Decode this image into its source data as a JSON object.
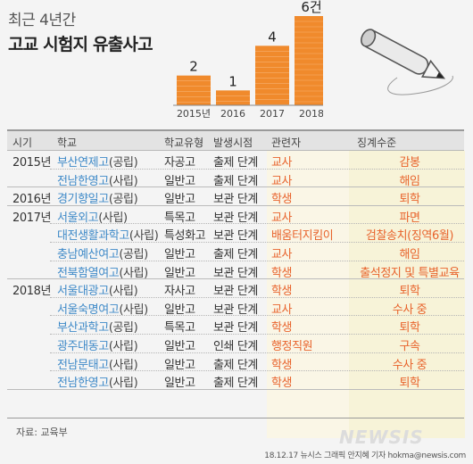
{
  "header": {
    "subtitle": "최근 4년간",
    "title": "고교 시험지 유출사고"
  },
  "chart_data": {
    "type": "bar",
    "categories": [
      "2015년",
      "2016",
      "2017",
      "2018"
    ],
    "values": [
      2,
      1,
      4,
      6
    ],
    "value_labels": [
      "2",
      "1",
      "4",
      "6건"
    ],
    "title": "",
    "xlabel": "",
    "ylabel": "",
    "ylim": [
      0,
      6
    ],
    "bar_color": "#f08a2c"
  },
  "table": {
    "headers": {
      "year": "시기",
      "school": "학교",
      "stype": "학교유형",
      "stage": "발생시점",
      "who": "관련자",
      "punish": "징계수준"
    },
    "rows": [
      {
        "year": "2015년",
        "name": "부산연제고",
        "type": "(공립)",
        "stype": "자공고",
        "stage": "출제 단계",
        "who": "교사",
        "punish": "감봉"
      },
      {
        "year": "",
        "name": "전남한영고",
        "type": "(사립)",
        "stype": "일반고",
        "stage": "출제 단계",
        "who": "교사",
        "punish": "해임"
      },
      {
        "year": "2016년",
        "name": "경기향일고",
        "type": "(공립)",
        "stype": "일반고",
        "stage": "보관 단계",
        "who": "학생",
        "punish": "퇴학"
      },
      {
        "year": "2017년",
        "name": "서울외고",
        "type": "(사립)",
        "stype": "특목고",
        "stage": "보관 단계",
        "who": "교사",
        "punish": "파면"
      },
      {
        "year": "",
        "name": "대전생활과학고",
        "type": "(사립)",
        "stype": "특성화고",
        "stage": "보관 단계",
        "who": "배움터지킴이",
        "punish": "검찰송치(징역6월)"
      },
      {
        "year": "",
        "name": "충남예산여고",
        "type": "(공립)",
        "stype": "일반고",
        "stage": "출제 단계",
        "who": "교사",
        "punish": "해임"
      },
      {
        "year": "",
        "name": "전북함열여고",
        "type": "(사립)",
        "stype": "일반고",
        "stage": "보관 단계",
        "who": "학생",
        "punish": "출석정지 및 특별교육"
      },
      {
        "year": "2018년",
        "name": "서울대광고",
        "type": "(사립)",
        "stype": "자사고",
        "stage": "보관 단계",
        "who": "학생",
        "punish": "퇴학"
      },
      {
        "year": "",
        "name": "서울숙명여고",
        "type": "(사립)",
        "stype": "일반고",
        "stage": "보관 단계",
        "who": "교사",
        "punish": "수사 중"
      },
      {
        "year": "",
        "name": "부산과학고",
        "type": "(공립)",
        "stype": "특목고",
        "stage": "보관 단계",
        "who": "학생",
        "punish": "퇴학"
      },
      {
        "year": "",
        "name": "광주대동고",
        "type": "(사립)",
        "stype": "일반고",
        "stage": "인쇄 단계",
        "who": "행정직원",
        "punish": "구속"
      },
      {
        "year": "",
        "name": "전남문태고",
        "type": "(사립)",
        "stype": "일반고",
        "stage": "출제 단계",
        "who": "학생",
        "punish": "수사 중"
      },
      {
        "year": "",
        "name": "전남한영고",
        "type": "(사립)",
        "stype": "일반고",
        "stage": "출제 단계",
        "who": "학생",
        "punish": "퇴학"
      }
    ]
  },
  "footer": {
    "source": "자료: 교육부",
    "credit": "18.12.17 뉴시스 그래픽 안지혜 기자  hokma@newsis.com",
    "logo": "NEWSIS"
  },
  "colors": {
    "accent_orange": "#e8632c",
    "bar": "#f08a2c",
    "school_blue": "#3f8ac8",
    "punish_bg": "#f7f3d8"
  },
  "icons": [
    "pencil-icon"
  ]
}
